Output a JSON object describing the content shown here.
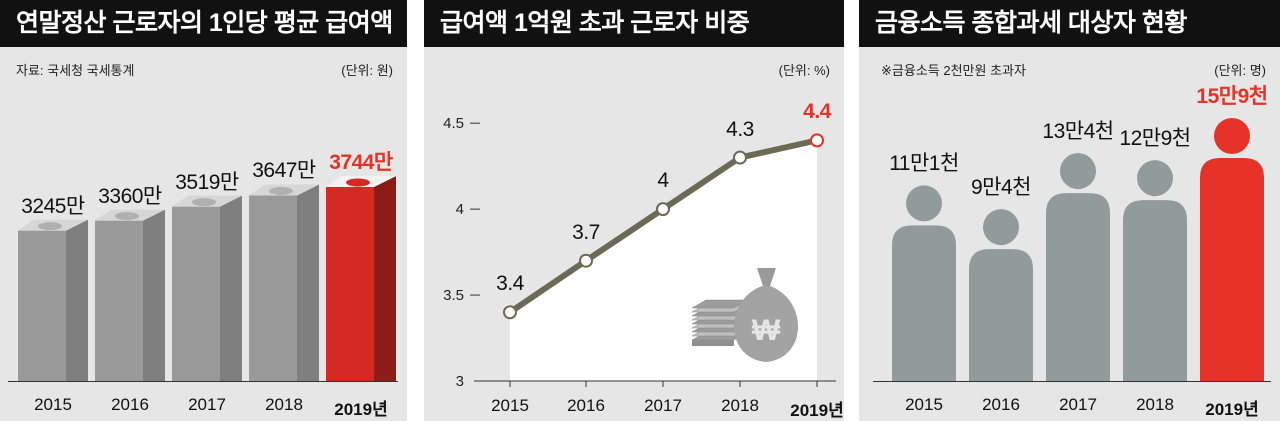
{
  "chart_data": [
    {
      "type": "bar",
      "title": "연말정산 근로자의 1인당 평균 급여액",
      "source": "자료: 국세청 국세통계",
      "unit": "(단위: 원)",
      "categories": [
        "2015",
        "2016",
        "2017",
        "2018",
        "2019년"
      ],
      "values": [
        32450000,
        33600000,
        35190000,
        36470000,
        37440000
      ],
      "value_labels": [
        "3245만",
        "3360만",
        "3519만",
        "3647만",
        "3744만"
      ],
      "highlight_index": 4,
      "colors": {
        "bar": "#999999",
        "bar_side": "#7f7f7f",
        "bar_top": "#c8c8c8",
        "highlight": "#d42a21",
        "highlight_side": "#8c1c18"
      }
    },
    {
      "type": "line",
      "title": "급여액 1억원 초과 근로자 비중",
      "unit": "(단위: %)",
      "categories": [
        "2015",
        "2016",
        "2017",
        "2018",
        "2019년"
      ],
      "values": [
        3.4,
        3.7,
        4.0,
        4.3,
        4.4
      ],
      "value_labels": [
        "3.4",
        "3.7",
        "4",
        "4.3",
        "4.4"
      ],
      "y_ticks": [
        "3",
        "3.5",
        "4",
        "4.5"
      ],
      "ylim": [
        3,
        4.6
      ],
      "highlight_index": 4,
      "colors": {
        "line": "#6b6a55",
        "fill": "#ffffff",
        "highlight": "#e63228"
      },
      "icons": [
        "money-stack-icon",
        "money-bag-icon"
      ],
      "bag_symbol": "₩"
    },
    {
      "type": "bar",
      "title": "금융소득 종합과세 대상자 현황",
      "note": "※금융소득 2천만원 초과자",
      "unit": "(단위: 명)",
      "categories": [
        "2015",
        "2016",
        "2017",
        "2018",
        "2019년"
      ],
      "values": [
        111000,
        94000,
        134000,
        129000,
        159000
      ],
      "value_labels": [
        "11만1천",
        "9만4천",
        "13만4천",
        "12만9천",
        "15만9천"
      ],
      "highlight_index": 4,
      "colors": {
        "person": "#929b9c",
        "highlight": "#e63228"
      }
    }
  ]
}
